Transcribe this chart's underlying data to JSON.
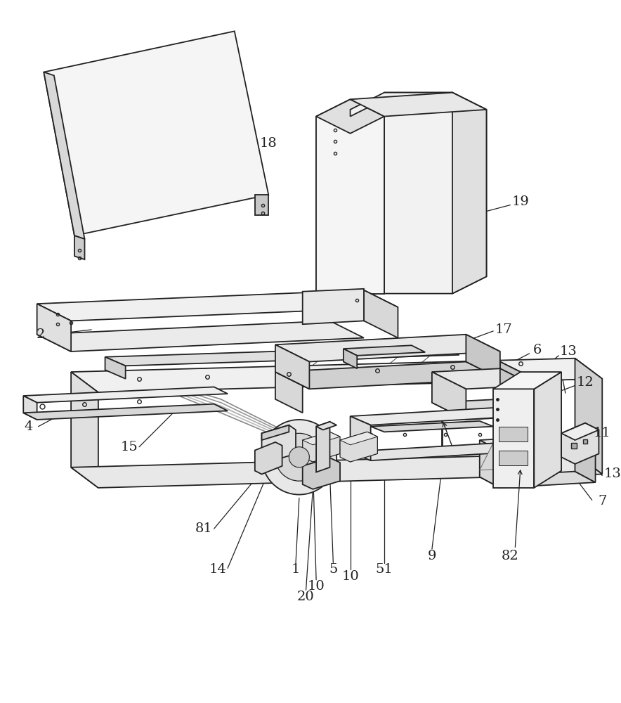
{
  "bg": "#ffffff",
  "lc": "#222222",
  "lc2": "#555555",
  "lw": 1.3,
  "fw": 8.84,
  "fh": 10.0
}
